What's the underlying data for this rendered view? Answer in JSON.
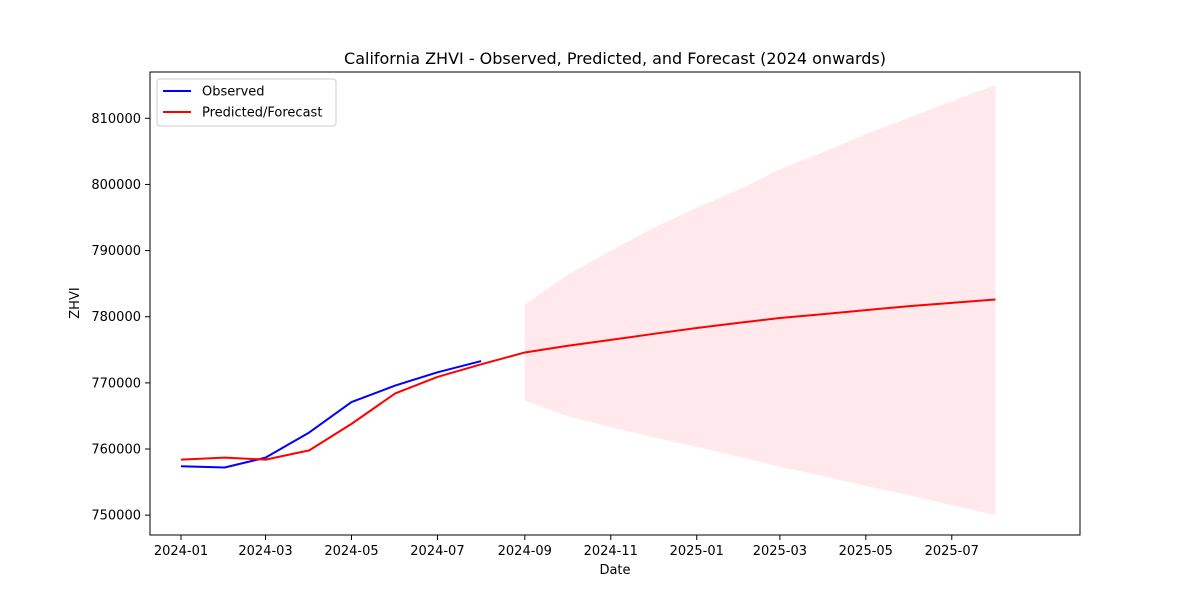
{
  "chart_data": {
    "type": "line",
    "title": "California ZHVI - Observed, Predicted, and Forecast (2024 onwards)",
    "xlabel": "Date",
    "ylabel": "ZHVI",
    "grid": false,
    "legend_placement": "upper-left",
    "x_ticks": [
      "2024-01",
      "2024-03",
      "2024-05",
      "2024-07",
      "2024-09",
      "2024-11",
      "2025-01",
      "2025-03",
      "2025-05",
      "2025-07"
    ],
    "y_ticks": [
      750000,
      760000,
      770000,
      780000,
      790000,
      800000,
      810000
    ],
    "xlim": [
      "2023-12-10",
      "2025-09-30"
    ],
    "ylim": [
      747000,
      817000
    ],
    "series": [
      {
        "name": "Observed",
        "color": "#0000ff",
        "points": [
          {
            "x": "2024-01-01",
            "y": 757400
          },
          {
            "x": "2024-02-01",
            "y": 757200
          },
          {
            "x": "2024-03-01",
            "y": 758700
          },
          {
            "x": "2024-04-01",
            "y": 762500
          },
          {
            "x": "2024-05-01",
            "y": 767100
          },
          {
            "x": "2024-06-01",
            "y": 769600
          },
          {
            "x": "2024-07-01",
            "y": 771600
          },
          {
            "x": "2024-08-01",
            "y": 773300
          }
        ]
      },
      {
        "name": "Predicted/Forecast",
        "color": "#ff0000",
        "points": [
          {
            "x": "2024-01-01",
            "y": 758400
          },
          {
            "x": "2024-02-01",
            "y": 758700
          },
          {
            "x": "2024-03-01",
            "y": 758400
          },
          {
            "x": "2024-04-01",
            "y": 759800
          },
          {
            "x": "2024-05-01",
            "y": 763800
          },
          {
            "x": "2024-06-01",
            "y": 768400
          },
          {
            "x": "2024-07-01",
            "y": 770900
          },
          {
            "x": "2024-08-01",
            "y": 772800
          },
          {
            "x": "2024-09-01",
            "y": 774600
          },
          {
            "x": "2024-10-01",
            "y": 775600
          },
          {
            "x": "2024-11-01",
            "y": 776500
          },
          {
            "x": "2024-12-01",
            "y": 777400
          },
          {
            "x": "2025-01-01",
            "y": 778300
          },
          {
            "x": "2025-02-01",
            "y": 779100
          },
          {
            "x": "2025-03-01",
            "y": 779800
          },
          {
            "x": "2025-04-01",
            "y": 780400
          },
          {
            "x": "2025-05-01",
            "y": 781000
          },
          {
            "x": "2025-06-01",
            "y": 781600
          },
          {
            "x": "2025-07-01",
            "y": 782100
          },
          {
            "x": "2025-08-01",
            "y": 782600
          }
        ]
      }
    ],
    "confidence_band": {
      "color": "#ffc0cb",
      "points": [
        {
          "x": "2024-09-01",
          "lower": 767300,
          "upper": 781800
        },
        {
          "x": "2024-10-01",
          "lower": 765000,
          "upper": 786300
        },
        {
          "x": "2024-11-01",
          "lower": 763300,
          "upper": 790000
        },
        {
          "x": "2024-12-01",
          "lower": 761800,
          "upper": 793400
        },
        {
          "x": "2025-01-01",
          "lower": 760300,
          "upper": 796500
        },
        {
          "x": "2025-02-01",
          "lower": 758800,
          "upper": 799300
        },
        {
          "x": "2025-03-01",
          "lower": 757300,
          "upper": 802300
        },
        {
          "x": "2025-04-01",
          "lower": 755900,
          "upper": 804900
        },
        {
          "x": "2025-05-01",
          "lower": 754400,
          "upper": 807600
        },
        {
          "x": "2025-06-01",
          "lower": 753000,
          "upper": 810100
        },
        {
          "x": "2025-07-01",
          "lower": 751500,
          "upper": 812600
        },
        {
          "x": "2025-08-01",
          "lower": 750000,
          "upper": 815000
        }
      ]
    }
  }
}
